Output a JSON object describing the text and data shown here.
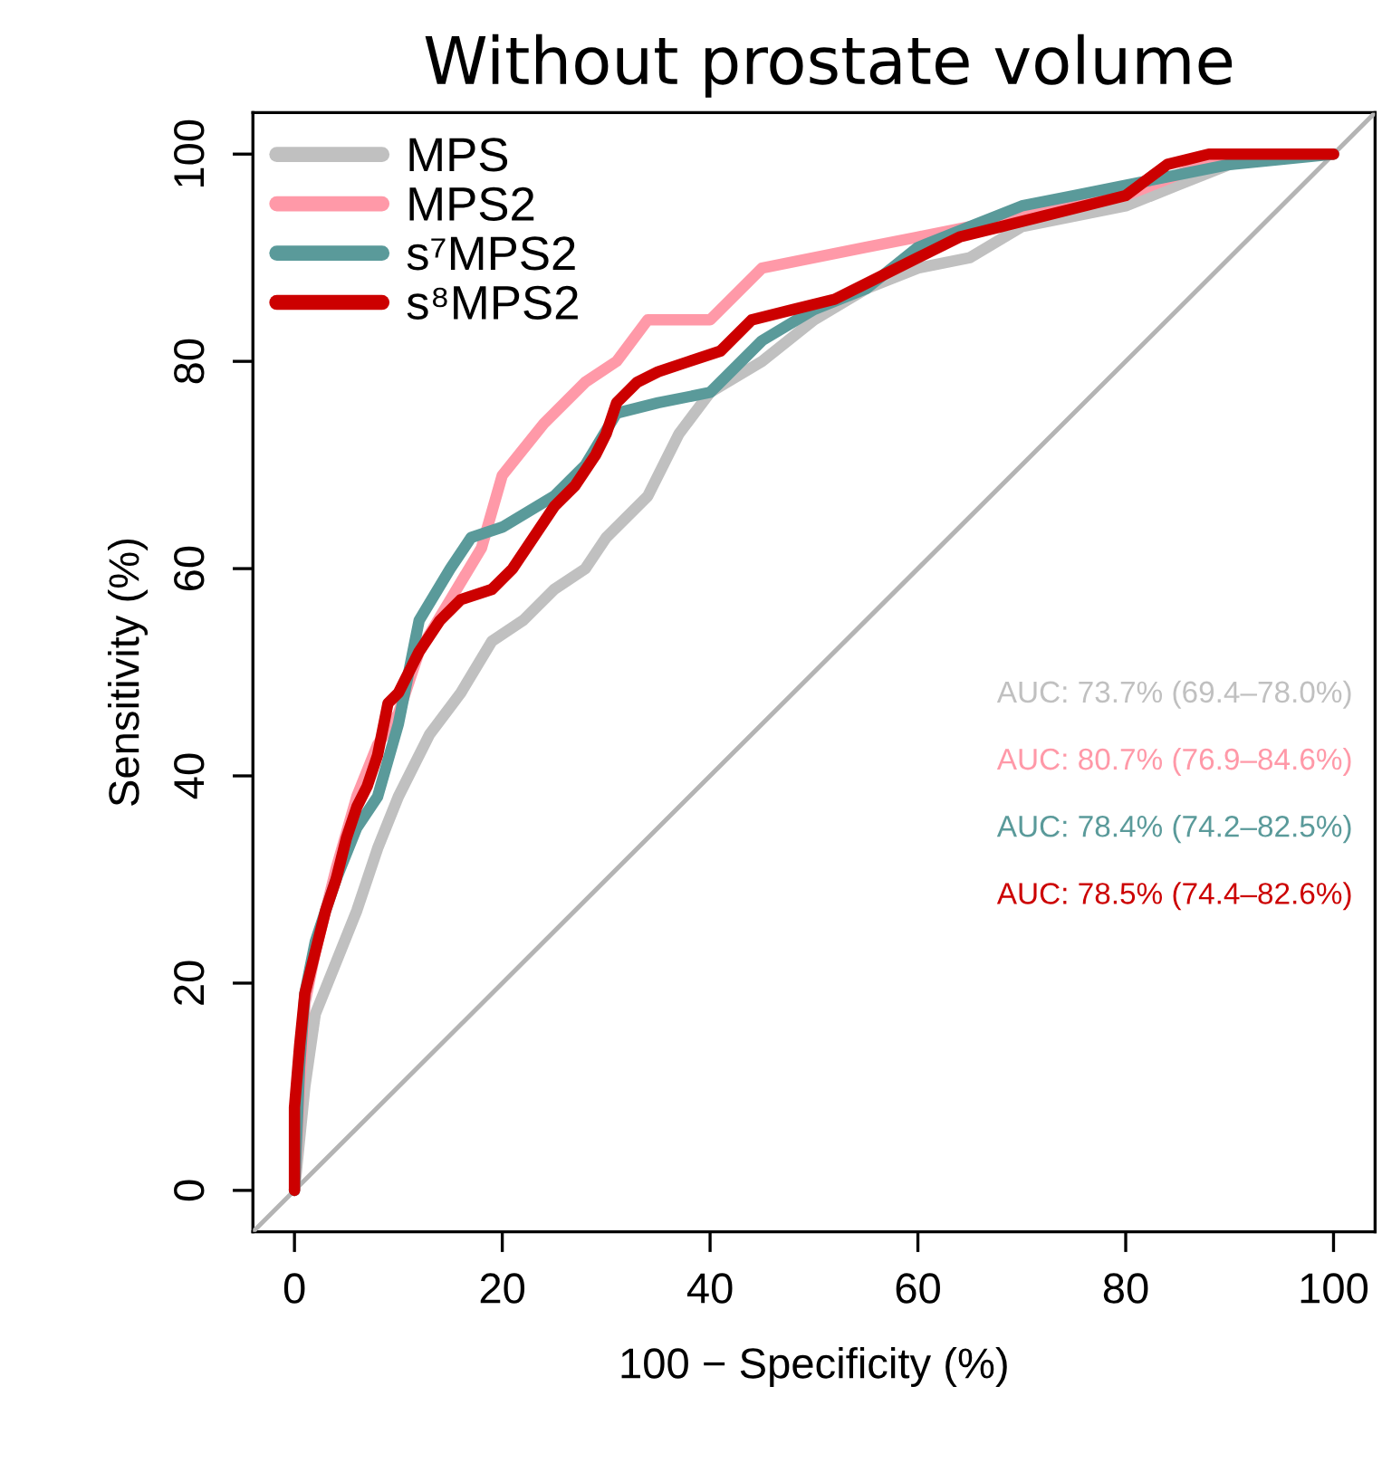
{
  "chart_data": {
    "type": "line",
    "title": "Without prostate volume",
    "xlabel": "100 − Specificity (%)",
    "ylabel": "Sensitivity (%)",
    "xlim": [
      -4,
      104
    ],
    "ylim": [
      -4,
      104
    ],
    "xticks": [
      0,
      20,
      40,
      60,
      80,
      100
    ],
    "yticks": [
      0,
      20,
      40,
      60,
      80,
      100
    ],
    "grid": false,
    "legend": "top left",
    "marker": "none",
    "line_style": "solid",
    "series": [
      {
        "name": "MPS",
        "color": "#c0c0c0",
        "x": [
          0,
          1,
          2,
          4,
          6,
          8,
          10,
          13,
          16,
          19,
          22,
          25,
          28,
          30,
          34,
          37,
          40,
          45,
          50,
          55,
          60,
          65,
          70,
          75,
          80,
          85,
          90,
          95,
          100
        ],
        "values": [
          0,
          10,
          17,
          22,
          27,
          33,
          38,
          44,
          48,
          53,
          55,
          58,
          60,
          63,
          67,
          73,
          77,
          80,
          84,
          87,
          89,
          90,
          93,
          94,
          95,
          97,
          99,
          100,
          100
        ]
      },
      {
        "name": "MPS2",
        "color": "#ff99a8",
        "x": [
          0,
          0.5,
          1,
          2,
          4,
          6,
          8,
          10,
          12,
          15,
          18,
          20,
          24,
          28,
          31,
          34,
          40,
          45,
          50,
          55,
          60,
          65,
          70,
          75,
          80,
          85,
          90,
          100
        ],
        "values": [
          0,
          10,
          18,
          23,
          31,
          38,
          43,
          46,
          52,
          57,
          62,
          69,
          74,
          78,
          80,
          84,
          84,
          89,
          90,
          91,
          92,
          93,
          94,
          95,
          96,
          98,
          100,
          100
        ]
      },
      {
        "name": "s⁷MPS2",
        "color": "#5a9a9a",
        "x": [
          0,
          0.5,
          1,
          2,
          4,
          6,
          8,
          10,
          12,
          15,
          17,
          20,
          25,
          28,
          31,
          35,
          40,
          45,
          50,
          55,
          60,
          65,
          70,
          75,
          80,
          85,
          90,
          100
        ],
        "values": [
          0,
          12,
          19,
          24,
          30,
          35,
          38,
          45,
          55,
          60,
          63,
          64,
          67,
          70,
          75,
          76,
          77,
          82,
          85,
          87,
          91,
          93,
          95,
          96,
          97,
          98,
          99,
          100
        ]
      },
      {
        "name": "s⁸MPS2",
        "color": "#cc0000",
        "x": [
          0,
          0,
          0.5,
          1,
          2,
          3,
          4,
          5,
          6,
          7,
          8,
          9,
          10,
          12,
          14,
          16,
          19,
          21,
          23,
          25,
          27,
          29,
          30,
          31,
          33,
          35,
          38,
          41,
          44,
          48,
          52,
          56,
          60,
          64,
          68,
          72,
          76,
          80,
          84,
          88,
          100
        ],
        "values": [
          0,
          8,
          14,
          19,
          23,
          27,
          30,
          34,
          37,
          39,
          42,
          47,
          48,
          52,
          55,
          57,
          58,
          60,
          63,
          66,
          68,
          71,
          73,
          76,
          78,
          79,
          80,
          81,
          84,
          85,
          86,
          88,
          90,
          92,
          93,
          94,
          95,
          96,
          99,
          100,
          100
        ]
      },
      {
        "color": "#b4b4b4",
        "x": [
          -4,
          104
        ],
        "values": [
          -4,
          104
        ]
      }
    ],
    "annotations": [
      "AUC: 73.7% (69.4–78.0%)",
      "AUC: 80.7% (76.9–84.6%)",
      "AUC: 78.4% (74.2–82.5%)",
      "AUC: 78.5% (74.4–82.6%)"
    ]
  }
}
